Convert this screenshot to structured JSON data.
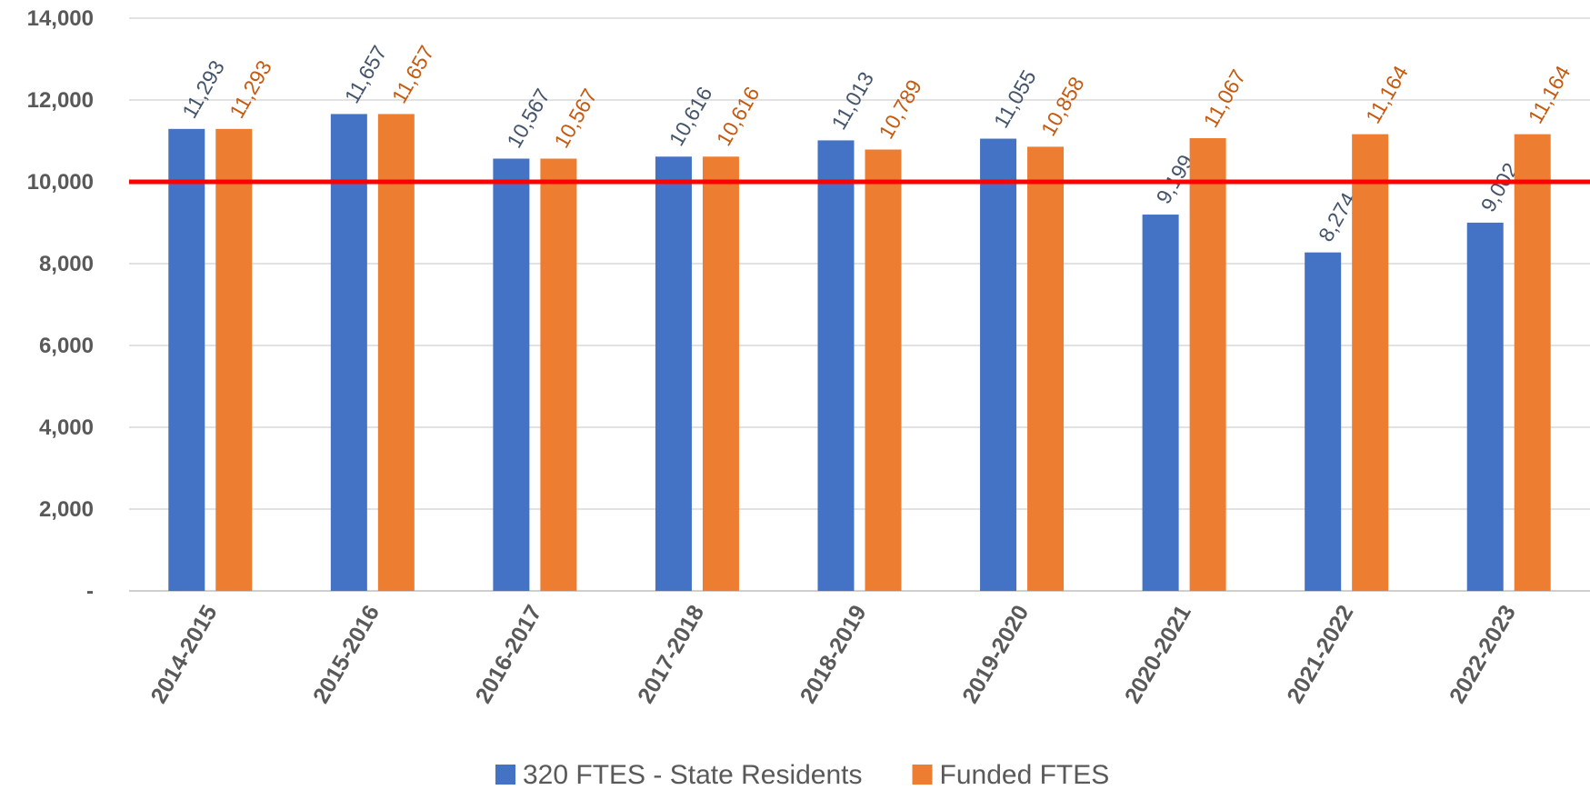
{
  "chart_data": {
    "type": "bar",
    "categories": [
      "2014-2015",
      "2015-2016",
      "2016-2017",
      "2017-2018",
      "2018-2019",
      "2019-2020",
      "2020-2021",
      "2021-2022",
      "2022-2023"
    ],
    "series": [
      {
        "name": "320 FTES - State Residents",
        "color": "#4472c4",
        "label_color": "#44546a",
        "values": [
          11293,
          11657,
          10567,
          10616,
          11013,
          11055,
          9199,
          8274,
          9002
        ],
        "value_labels": [
          "11,293",
          "11,657",
          "10,567",
          "10,616",
          "11,013",
          "11,055",
          "9,199",
          "8,274",
          "9,002"
        ]
      },
      {
        "name": "Funded FTES",
        "color": "#ed7d31",
        "label_color": "#c55a11",
        "values": [
          11293,
          11657,
          10567,
          10616,
          10789,
          10858,
          11067,
          11164,
          11164
        ],
        "value_labels": [
          "11,293",
          "11,657",
          "10,567",
          "10,616",
          "10,789",
          "10,858",
          "11,067",
          "11,164",
          "11,164"
        ]
      }
    ],
    "ylim": [
      0,
      14000
    ],
    "yticks": [
      {
        "value": 0,
        "label": "-"
      },
      {
        "value": 2000,
        "label": "2,000"
      },
      {
        "value": 4000,
        "label": "4,000"
      },
      {
        "value": 6000,
        "label": "6,000"
      },
      {
        "value": 8000,
        "label": "8,000"
      },
      {
        "value": 10000,
        "label": "10,000"
      },
      {
        "value": 12000,
        "label": "12,000"
      },
      {
        "value": 14000,
        "label": "14,000"
      }
    ],
    "grid": true,
    "reference_line": {
      "value": 10000,
      "color": "#ff0000"
    },
    "legend": "bottom"
  }
}
